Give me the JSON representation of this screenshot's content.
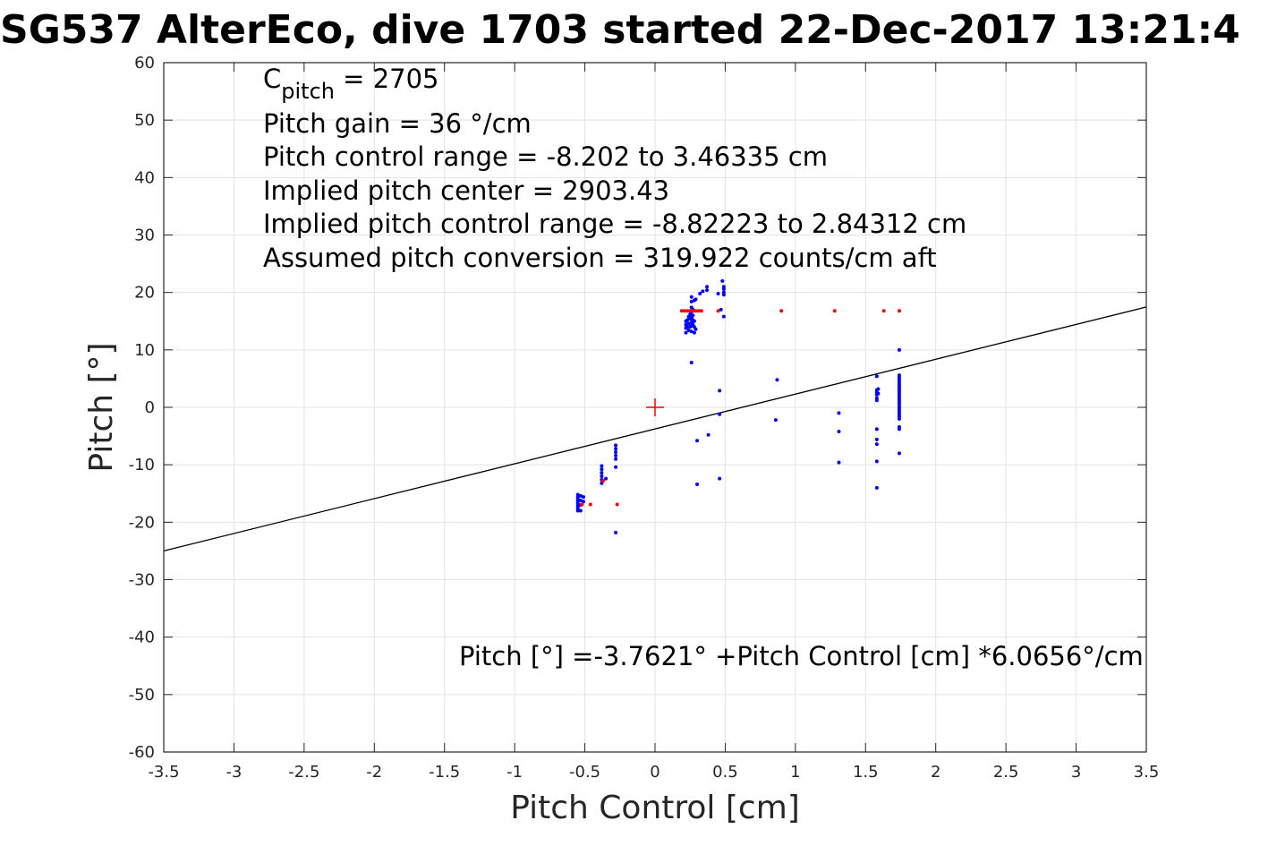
{
  "chart_data": {
    "type": "scatter",
    "title": "SG537 AlterEco, dive 1703 started 22-Dec-2017 13:21:4",
    "xlabel": "Pitch Control [cm]",
    "ylabel": "Pitch [°]",
    "xlim": [
      -3.5,
      3.5
    ],
    "ylim": [
      -60,
      60
    ],
    "xticks": [
      -3.5,
      -3,
      -2.5,
      -2,
      -1.5,
      -1,
      -0.5,
      0,
      0.5,
      1,
      1.5,
      2,
      2.5,
      3,
      3.5
    ],
    "xtick_labels": [
      "-3.5",
      "-3",
      "-2.5",
      "-2",
      "-1.5",
      "-1",
      "-0.5",
      "0",
      "0.5",
      "1",
      "1.5",
      "2",
      "2.5",
      "3",
      "3.5"
    ],
    "yticks": [
      -60,
      -50,
      -40,
      -30,
      -20,
      -10,
      0,
      10,
      20,
      30,
      40,
      50,
      60
    ],
    "ytick_labels": [
      "-60",
      "-50",
      "-40",
      "-30",
      "-20",
      "-10",
      "0",
      "10",
      "20",
      "30",
      "40",
      "50",
      "60"
    ],
    "grid": true,
    "annotations": {
      "c_pitch_main": "C",
      "c_pitch_sub": "pitch",
      "c_pitch_value": " = 2705",
      "pitch_gain": "Pitch gain = 36 °/cm",
      "control_range": "Pitch control range = -8.202 to 3.46335 cm",
      "implied_center": "Implied pitch center = 2903.43",
      "implied_range": "Implied pitch control range = -8.82223 to 2.84312 cm",
      "assumed_conversion": "Assumed pitch conversion = 319.922 counts/cm aft",
      "fit_equation": "Pitch [°] =-3.7621° +Pitch Control [cm] *6.0656°/cm"
    },
    "fit_line": {
      "intercept": -3.7621,
      "slope": 6.0656
    },
    "center_marker": {
      "x": 0,
      "y": 0,
      "color": "#ff0000"
    },
    "series": [
      {
        "color": "#0000ff",
        "points": [
          [
            -0.55,
            -15.2
          ],
          [
            -0.55,
            -15.6
          ],
          [
            -0.55,
            -16.0
          ],
          [
            -0.55,
            -16.4
          ],
          [
            -0.55,
            -16.8
          ],
          [
            -0.55,
            -17.2
          ],
          [
            -0.55,
            -17.6
          ],
          [
            -0.55,
            -18.0
          ],
          [
            -0.53,
            -15.4
          ],
          [
            -0.53,
            -16.2
          ],
          [
            -0.53,
            -17.0
          ],
          [
            -0.53,
            -18.0
          ],
          [
            -0.51,
            -15.6
          ],
          [
            -0.51,
            -16.4
          ],
          [
            -0.38,
            -10.2
          ],
          [
            -0.38,
            -10.8
          ],
          [
            -0.38,
            -11.4
          ],
          [
            -0.38,
            -12.0
          ],
          [
            -0.38,
            -12.6
          ],
          [
            -0.38,
            -13.2
          ],
          [
            -0.35,
            -12.4
          ],
          [
            -0.28,
            -6.6
          ],
          [
            -0.28,
            -7.2
          ],
          [
            -0.28,
            -7.8
          ],
          [
            -0.28,
            -8.4
          ],
          [
            -0.28,
            -9.0
          ],
          [
            -0.28,
            -10.4
          ],
          [
            -0.28,
            -21.8
          ],
          [
            0.22,
            13.0
          ],
          [
            0.22,
            13.8
          ],
          [
            0.22,
            14.4
          ],
          [
            0.22,
            15.0
          ],
          [
            0.23,
            14.0
          ],
          [
            0.23,
            15.2
          ],
          [
            0.24,
            13.4
          ],
          [
            0.24,
            14.6
          ],
          [
            0.24,
            15.8
          ],
          [
            0.25,
            14.0
          ],
          [
            0.25,
            15.4
          ],
          [
            0.25,
            16.2
          ],
          [
            0.26,
            13.2
          ],
          [
            0.26,
            14.2
          ],
          [
            0.26,
            14.8
          ],
          [
            0.26,
            15.6
          ],
          [
            0.26,
            16.6
          ],
          [
            0.26,
            17.4
          ],
          [
            0.26,
            18.4
          ],
          [
            0.26,
            19.2
          ],
          [
            0.26,
            7.8
          ],
          [
            0.27,
            14.4
          ],
          [
            0.27,
            15.2
          ],
          [
            0.27,
            16.0
          ],
          [
            0.27,
            17.0
          ],
          [
            0.28,
            13.0
          ],
          [
            0.28,
            14.0
          ],
          [
            0.28,
            15.0
          ],
          [
            0.28,
            18.6
          ],
          [
            0.29,
            13.6
          ],
          [
            0.29,
            18.8
          ],
          [
            0.3,
            -5.8
          ],
          [
            0.3,
            -13.4
          ],
          [
            0.32,
            19.8
          ],
          [
            0.34,
            20.2
          ],
          [
            0.37,
            20.4
          ],
          [
            0.37,
            21.0
          ],
          [
            0.38,
            -4.8
          ],
          [
            0.45,
            19.8
          ],
          [
            0.46,
            2.9
          ],
          [
            0.46,
            -1.2
          ],
          [
            0.46,
            -12.4
          ],
          [
            0.47,
            17.0
          ],
          [
            0.48,
            22.0
          ],
          [
            0.49,
            15.8
          ],
          [
            0.49,
            19.6
          ],
          [
            0.49,
            20.0
          ],
          [
            0.49,
            20.6
          ],
          [
            0.49,
            21.0
          ],
          [
            0.86,
            -2.2
          ],
          [
            0.87,
            4.8
          ],
          [
            1.31,
            -1.0
          ],
          [
            1.31,
            -4.2
          ],
          [
            1.31,
            -9.6
          ],
          [
            1.58,
            5.4
          ],
          [
            1.58,
            3.0
          ],
          [
            1.58,
            2.6
          ],
          [
            1.58,
            2.2
          ],
          [
            1.58,
            1.6
          ],
          [
            1.58,
            1.2
          ],
          [
            1.58,
            -3.8
          ],
          [
            1.58,
            -5.6
          ],
          [
            1.58,
            -6.4
          ],
          [
            1.58,
            -9.4
          ],
          [
            1.58,
            -14.0
          ],
          [
            1.59,
            3.2
          ],
          [
            1.59,
            2.4
          ],
          [
            1.74,
            10.0
          ],
          [
            1.74,
            5.6
          ],
          [
            1.74,
            5.2
          ],
          [
            1.74,
            4.8
          ],
          [
            1.74,
            4.4
          ],
          [
            1.74,
            4.0
          ],
          [
            1.74,
            3.6
          ],
          [
            1.74,
            3.2
          ],
          [
            1.74,
            2.8
          ],
          [
            1.74,
            2.4
          ],
          [
            1.74,
            2.0
          ],
          [
            1.74,
            1.6
          ],
          [
            1.74,
            1.2
          ],
          [
            1.74,
            0.8
          ],
          [
            1.74,
            0.4
          ],
          [
            1.74,
            0.0
          ],
          [
            1.74,
            -0.4
          ],
          [
            1.74,
            -0.8
          ],
          [
            1.74,
            -1.2
          ],
          [
            1.74,
            -1.6
          ],
          [
            1.74,
            -2.0
          ],
          [
            1.74,
            -3.4
          ],
          [
            1.74,
            -3.8
          ],
          [
            1.74,
            -8.0
          ]
        ]
      },
      {
        "color": "#ff0000",
        "points": [
          [
            -0.52,
            -16.9
          ],
          [
            -0.46,
            -16.9
          ],
          [
            -0.27,
            -16.9
          ],
          [
            -0.37,
            -12.8
          ],
          [
            0.19,
            16.8
          ],
          [
            0.21,
            16.8
          ],
          [
            0.23,
            16.8
          ],
          [
            0.25,
            16.8
          ],
          [
            0.27,
            16.8
          ],
          [
            0.29,
            16.8
          ],
          [
            0.31,
            16.8
          ],
          [
            0.33,
            16.8
          ],
          [
            0.45,
            16.8
          ],
          [
            0.9,
            16.8
          ],
          [
            1.28,
            16.8
          ],
          [
            1.63,
            16.8
          ],
          [
            1.74,
            16.8
          ]
        ]
      }
    ]
  }
}
